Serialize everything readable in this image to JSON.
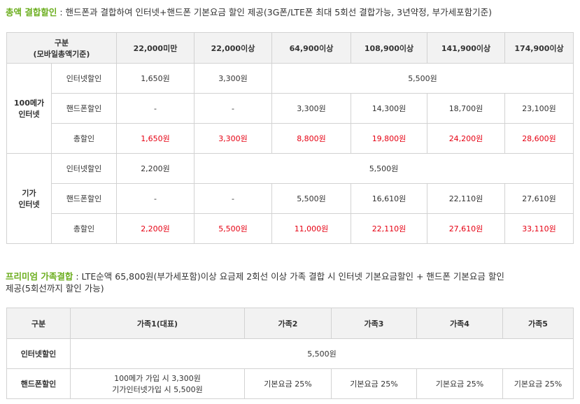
{
  "section1": {
    "title": "총액 결합할인",
    "desc": " : 핸드폰과 결합하여 인터넷+핸드폰 기본요금 할인 제공(3G폰/LTE폰 최대 5회선 결합가능, 3년약정, 부가세포함기준)",
    "header": {
      "col0_line1": "구분",
      "col0_line2": "(모바일총액기준)",
      "cols": [
        "22,000미만",
        "22,000이상",
        "64,900이상",
        "108,900이상",
        "141,900이상",
        "174,900이상"
      ]
    },
    "groups": [
      {
        "name_line1": "100메가",
        "name_line2": "인터넷",
        "internet_label": "인터넷할인",
        "internet_values": [
          "1,650원",
          "3,300원"
        ],
        "internet_merged": "5,500원",
        "phone_label": "핸드폰할인",
        "phone_values": [
          "-",
          "-",
          "3,300원",
          "14,300원",
          "18,700원",
          "23,100원"
        ],
        "total_label": "총할인",
        "total_values": [
          "1,650원",
          "3,300원",
          "8,800원",
          "19,800원",
          "24,200원",
          "28,600원"
        ]
      },
      {
        "name_line1": "기가",
        "name_line2": "인터넷",
        "internet_label": "인터넷할인",
        "internet_values": [
          "2,200원"
        ],
        "internet_merged": "5,500원",
        "phone_label": "핸드폰할인",
        "phone_values": [
          "-",
          "-",
          "5,500원",
          "16,610원",
          "22,110원",
          "27,610원"
        ],
        "total_label": "총할인",
        "total_values": [
          "2,200원",
          "5,500원",
          "11,000원",
          "22,110원",
          "27,610원",
          "33,110원"
        ]
      }
    ]
  },
  "section2": {
    "title": "프리미엄 가족결합",
    "desc_line1": " : LTE순액 65,800원(부가세포함)이상 요금제 2회선 이상 가족 결합 시 인터넷 기본요금할인 + 핸드폰 기본요금 할인",
    "desc_line2": "제공(5회선까지 할인 가능)",
    "header": {
      "col0": "구분",
      "cols": [
        "가족1(대표)",
        "가족2",
        "가족3",
        "가족4",
        "가족5"
      ]
    },
    "internet_label": "인터넷할인",
    "internet_value": "5,500원",
    "phone_label": "핸드폰할인",
    "phone_first_line1": "100메가 가입 시 3,300원",
    "phone_first_line2": "기가인터넷가입 시 5,500원",
    "phone_values": [
      "기본요금 25%",
      "기본요금 25%",
      "기본요금 25%",
      "기본요금 25%"
    ]
  },
  "colors": {
    "accent": "#6cae1f",
    "red": "#e60012",
    "header_bg": "#f2f2f2",
    "border": "#d2d2d2"
  }
}
